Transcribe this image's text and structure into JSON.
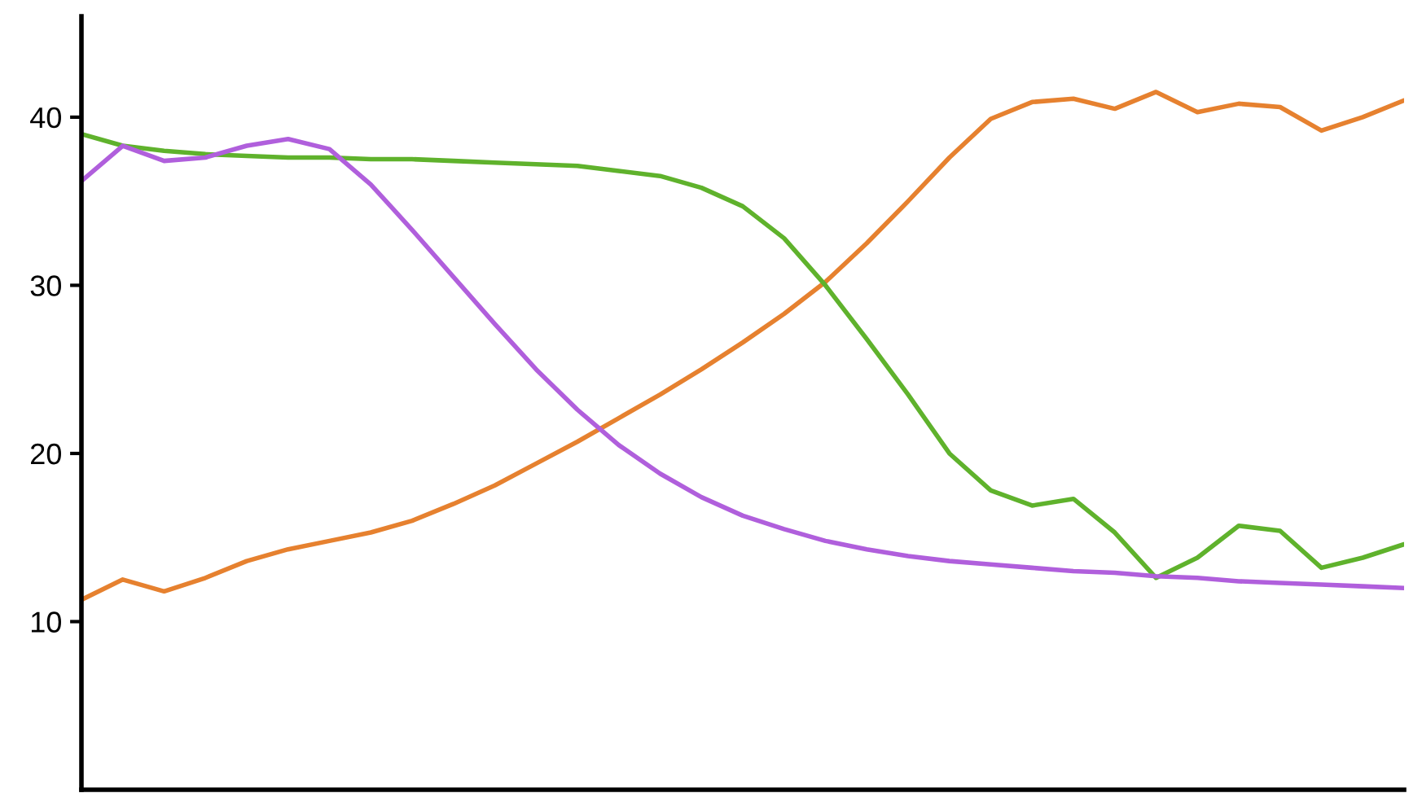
{
  "chart_data": {
    "type": "line",
    "categories": [
      null,
      null,
      null,
      null,
      null,
      null,
      null,
      null,
      null,
      null,
      null,
      null,
      null,
      null,
      null,
      null,
      null,
      null,
      null,
      null,
      null,
      null,
      null,
      null,
      null,
      null,
      null,
      null,
      null,
      null,
      null,
      null,
      null
    ],
    "series": [
      {
        "color": "#e6812f",
        "values": [
          11.3,
          12.5,
          11.8,
          12.6,
          13.6,
          14.3,
          14.8,
          15.3,
          16.0,
          17.0,
          18.1,
          19.4,
          20.7,
          22.1,
          23.5,
          25.0,
          26.6,
          28.3,
          30.2,
          32.5,
          35.0,
          37.6,
          39.9,
          40.9,
          41.1,
          40.5,
          41.5,
          40.3,
          40.8,
          40.6,
          39.2,
          40.0,
          41.0
        ]
      },
      {
        "color": "#5fb22c",
        "values": [
          39.0,
          38.3,
          38.0,
          37.8,
          37.7,
          37.6,
          37.6,
          37.5,
          37.5,
          37.4,
          37.3,
          37.2,
          37.1,
          36.8,
          36.5,
          35.8,
          34.7,
          32.8,
          30.0,
          26.8,
          23.5,
          20.0,
          17.8,
          16.9,
          17.3,
          15.3,
          12.6,
          13.8,
          15.7,
          15.4,
          13.2,
          13.8,
          14.6
        ]
      },
      {
        "color": "#b05fdc",
        "values": [
          36.2,
          38.3,
          37.4,
          37.6,
          38.3,
          38.7,
          38.1,
          36.0,
          33.3,
          30.5,
          27.7,
          25.0,
          22.6,
          20.5,
          18.8,
          17.4,
          16.3,
          15.5,
          14.8,
          14.3,
          13.9,
          13.6,
          13.4,
          13.2,
          13.0,
          12.9,
          12.7,
          12.6,
          12.4,
          12.3,
          12.2,
          12.1,
          12.0
        ]
      }
    ],
    "ylim": [
      0,
      46
    ],
    "yticks": [
      10,
      20,
      30,
      40
    ],
    "tick_labels": "y",
    "grid": false,
    "marker": "none",
    "line_style": "solid"
  }
}
